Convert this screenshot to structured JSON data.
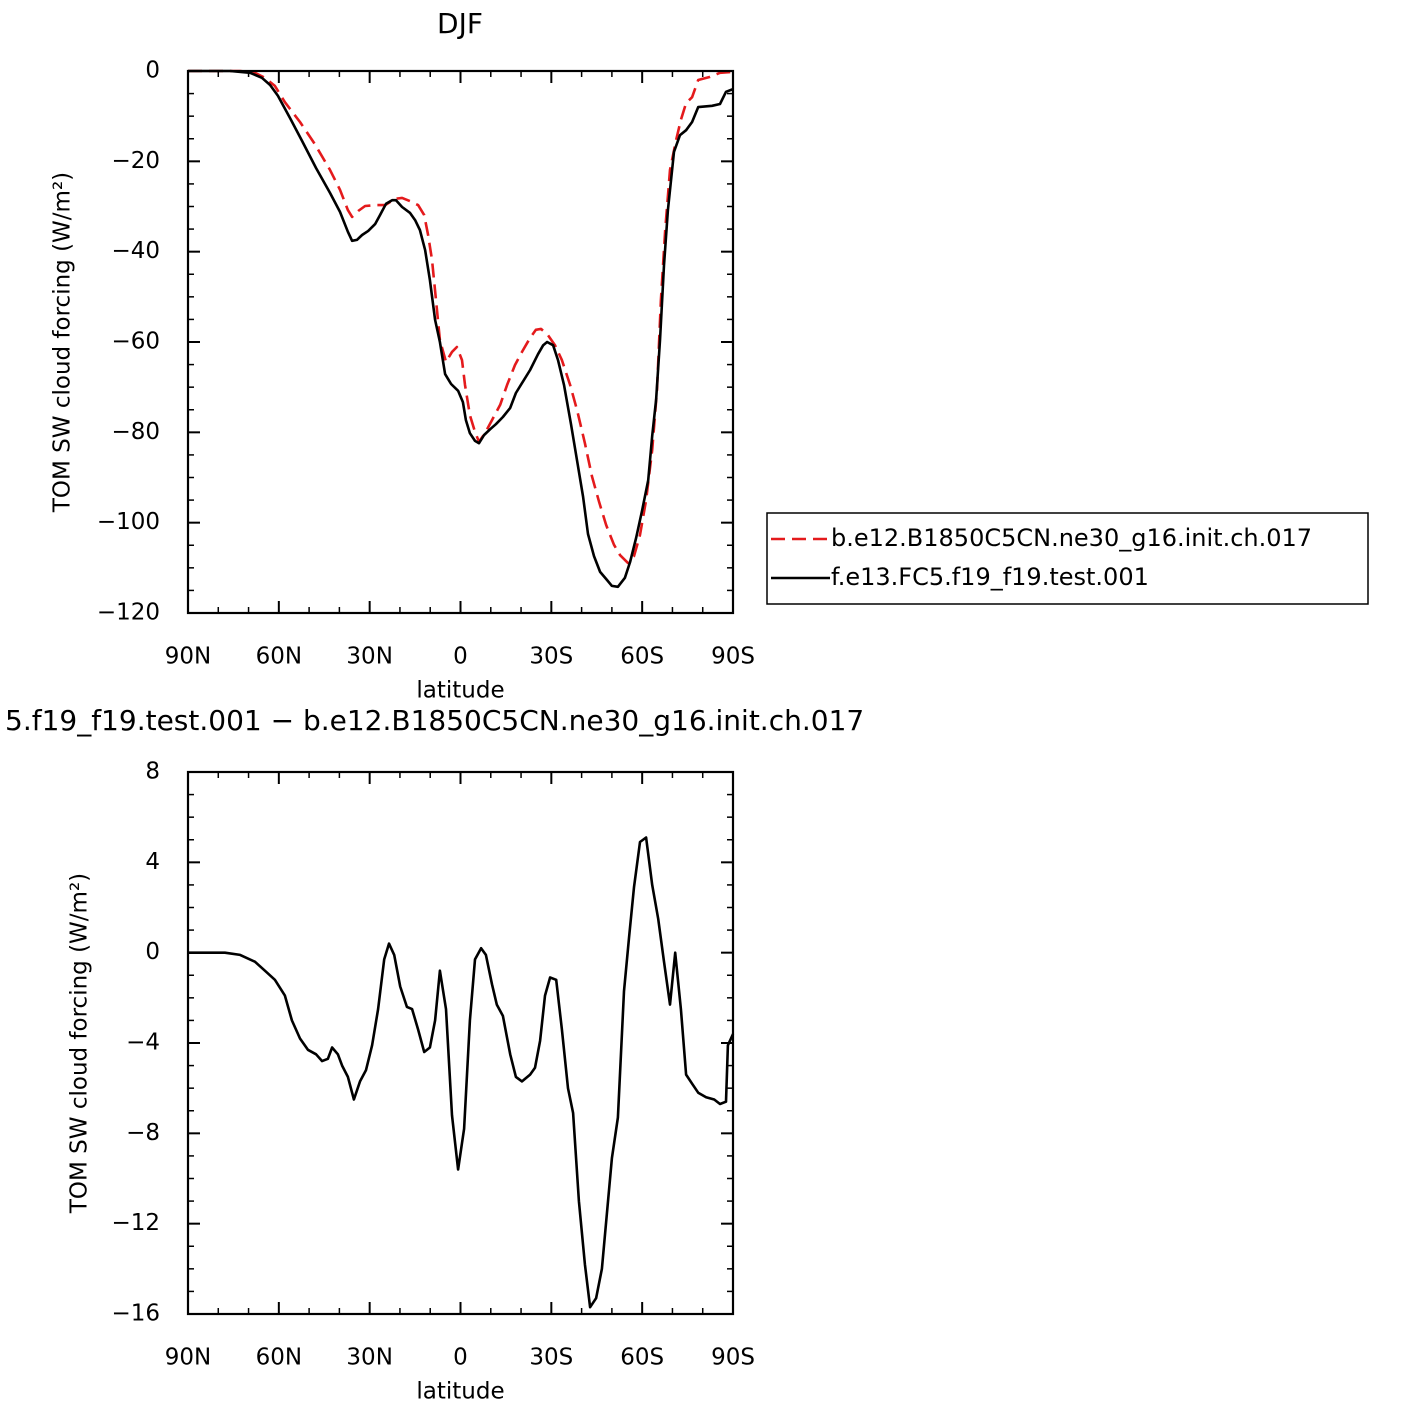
{
  "chart_data": [
    {
      "type": "line",
      "title": "DJF",
      "xlabel": "latitude",
      "ylabel": "TOM SW cloud forcing (W/m²)",
      "xlim": [
        90,
        -90
      ],
      "xticks": [
        {
          "value": 90,
          "label": "90N"
        },
        {
          "value": 60,
          "label": "60N"
        },
        {
          "value": 30,
          "label": "30N"
        },
        0,
        {
          "value": -30,
          "label": "30S"
        },
        {
          "value": -60,
          "label": "60S"
        },
        {
          "value": -90,
          "label": "90S"
        }
      ],
      "xminorticks": [
        80,
        70,
        50,
        40,
        20,
        10,
        -10,
        -20,
        -40,
        -50,
        -70,
        -80
      ],
      "ylim": [
        -120,
        0
      ],
      "yticks": [
        {
          "value": -120,
          "label": "−120"
        },
        {
          "value": -100,
          "label": "−100"
        },
        {
          "value": -80,
          "label": "−80"
        },
        {
          "value": -60,
          "label": "−60"
        },
        {
          "value": -40,
          "label": "−40"
        },
        {
          "value": -20,
          "label": "−20"
        },
        0
      ],
      "yminorticks": [
        -115,
        -110,
        -105,
        -95,
        -90,
        -85,
        -75,
        -70,
        -65,
        -55,
        -50,
        -45,
        -35,
        -30,
        -25,
        -15,
        -10,
        -5
      ],
      "legend": "right",
      "series": [
        {
          "name": "b.e12.B1850C5CN.ne30_g16.init.ch.017",
          "color": "#e41a1c",
          "line_style": "dashed",
          "x": [
            90,
            72.8,
            67.9,
            64.6,
            61.3,
            58.0,
            53.0,
            48.1,
            43.1,
            39.8,
            37.2,
            35.8,
            33.8,
            31.5,
            28.2,
            24.9,
            21.6,
            19.3,
            16.7,
            14.0,
            12.0,
            10.7,
            9.4,
            8.1,
            6.8,
            4.8,
            2.8,
            1.2,
            -0.5,
            -1.5,
            -3.1,
            -4.8,
            -6.1,
            -8.1,
            -10.4,
            -13.1,
            -15.4,
            -18.0,
            -20.3,
            -23.0,
            -24.9,
            -26.6,
            -28.9,
            -31.2,
            -33.5,
            -36.2,
            -38.5,
            -41.1,
            -43.4,
            -45.8,
            -48.1,
            -50.7,
            -52.7,
            -55.3,
            -57.3,
            -59.3,
            -61.3,
            -63.3,
            -64.9,
            -66.2,
            -67.6,
            -69.2,
            -71.2,
            -72.8,
            -74.5,
            -76.5,
            -78.5,
            -82.4,
            -85.7,
            -90
          ],
          "values": [
            0,
            0,
            -0.4,
            -1.5,
            -3.3,
            -6.9,
            -11.3,
            -16.2,
            -21.9,
            -26.3,
            -30.8,
            -32.3,
            -31.0,
            -29.9,
            -29.7,
            -29.7,
            -28.3,
            -28.1,
            -28.8,
            -29.7,
            -31.9,
            -36.3,
            -41.8,
            -50.7,
            -59.6,
            -64.4,
            -62.2,
            -61.1,
            -64.0,
            -69.5,
            -76.2,
            -79.9,
            -82.1,
            -80.2,
            -77.3,
            -73.9,
            -69.5,
            -65.1,
            -62.2,
            -59.1,
            -57.3,
            -57.1,
            -58.5,
            -60.7,
            -64.0,
            -69.5,
            -75.1,
            -82.4,
            -89.7,
            -95.5,
            -100.5,
            -104.9,
            -107.2,
            -108.9,
            -107.4,
            -102.7,
            -95.0,
            -83.9,
            -70.6,
            -50.7,
            -35.2,
            -21.9,
            -15.3,
            -10.8,
            -7.1,
            -5.8,
            -2.0,
            -1.3,
            -0.4,
            -0.2
          ]
        },
        {
          "name": "f.e13.FC5.f19_f19.test.001",
          "color": "#000000",
          "line_style": "solid",
          "x": [
            90,
            76.1,
            69.5,
            65.6,
            62.9,
            60.3,
            56.3,
            52.3,
            47.7,
            43.1,
            39.8,
            37.2,
            35.8,
            34.2,
            32.5,
            30.5,
            28.2,
            26.6,
            24.6,
            22.6,
            21.3,
            19.3,
            16.7,
            15.0,
            13.4,
            11.7,
            10.1,
            8.4,
            6.8,
            5.1,
            3.1,
            0.8,
            -0.8,
            -1.8,
            -3.1,
            -4.8,
            -6.1,
            -7.8,
            -9.8,
            -11.7,
            -14.0,
            -16.4,
            -18.3,
            -20.3,
            -23.0,
            -25.6,
            -27.3,
            -28.6,
            -30.6,
            -32.2,
            -34.2,
            -36.5,
            -38.5,
            -40.5,
            -42.1,
            -44.1,
            -46.1,
            -48.4,
            -50.0,
            -52.0,
            -54.3,
            -56.0,
            -58.0,
            -60.0,
            -62.0,
            -63.3,
            -64.6,
            -65.9,
            -67.2,
            -68.5,
            -70.5,
            -72.5,
            -74.5,
            -76.5,
            -78.5,
            -83.1,
            -85.7,
            -87.7,
            -90
          ],
          "values": [
            0,
            0,
            -0.4,
            -1.5,
            -3.1,
            -5.5,
            -10.4,
            -15.5,
            -21.5,
            -27.0,
            -31.2,
            -35.6,
            -37.6,
            -37.4,
            -36.3,
            -35.4,
            -33.9,
            -31.9,
            -29.4,
            -28.6,
            -28.6,
            -30.1,
            -31.4,
            -33.0,
            -35.2,
            -39.6,
            -46.3,
            -55.1,
            -60.0,
            -67.1,
            -69.3,
            -70.8,
            -73.3,
            -77.3,
            -80.2,
            -81.9,
            -82.4,
            -80.6,
            -79.3,
            -78.2,
            -76.6,
            -74.6,
            -71.3,
            -69.1,
            -66.2,
            -62.7,
            -60.7,
            -60.0,
            -60.7,
            -64.0,
            -69.5,
            -78.2,
            -86.3,
            -94.3,
            -102.5,
            -107.4,
            -110.9,
            -112.7,
            -114.0,
            -114.2,
            -112.2,
            -108.7,
            -103.4,
            -97.2,
            -90.6,
            -80.8,
            -72.8,
            -59.6,
            -43.0,
            -30.8,
            -17.9,
            -14.2,
            -13.1,
            -11.3,
            -8.0,
            -7.7,
            -7.3,
            -4.6,
            -4.0
          ]
        }
      ]
    },
    {
      "type": "line",
      "title": "5.f19_f19.test.001 − b.e12.B1850C5CN.ne30_g16.init.ch.017",
      "xlabel": "latitude",
      "ylabel": "TOM SW cloud forcing (W/m²)",
      "xlim": [
        90,
        -90
      ],
      "xticks": [
        {
          "value": 90,
          "label": "90N"
        },
        {
          "value": 60,
          "label": "60N"
        },
        {
          "value": 30,
          "label": "30N"
        },
        0,
        {
          "value": -30,
          "label": "30S"
        },
        {
          "value": -60,
          "label": "60S"
        },
        {
          "value": -90,
          "label": "90S"
        }
      ],
      "xminorticks": [
        80,
        70,
        50,
        40,
        20,
        10,
        -10,
        -20,
        -40,
        -50,
        -70,
        -80
      ],
      "ylim": [
        -16,
        8
      ],
      "yticks": [
        {
          "value": -16,
          "label": "−16"
        },
        {
          "value": -12,
          "label": "−12"
        },
        {
          "value": -8,
          "label": "−8"
        },
        {
          "value": -4,
          "label": "−4"
        },
        0,
        4,
        8
      ],
      "yminorticks": [
        7,
        6,
        5,
        3,
        2,
        1,
        -1,
        -2,
        -3,
        -5,
        -6,
        -7,
        -9,
        -10,
        -11,
        -13,
        -14,
        -15
      ],
      "color": "#000000",
      "x": [
        90,
        77.8,
        72.8,
        67.9,
        64.6,
        61.3,
        58.0,
        55.7,
        53.0,
        50.4,
        47.7,
        45.7,
        43.8,
        42.4,
        40.5,
        39.1,
        37.2,
        35.2,
        33.2,
        31.2,
        29.2,
        27.2,
        25.2,
        23.6,
        21.9,
        19.9,
        17.7,
        16.0,
        14.0,
        12.0,
        10.1,
        8.4,
        6.8,
        4.8,
        2.8,
        0.8,
        -1.2,
        -3.1,
        -4.8,
        -6.8,
        -8.4,
        -10.4,
        -12.0,
        -14.0,
        -16.4,
        -18.3,
        -20.3,
        -23.0,
        -24.6,
        -26.3,
        -27.9,
        -29.6,
        -31.6,
        -33.5,
        -35.5,
        -37.2,
        -39.1,
        -41.1,
        -42.8,
        -44.8,
        -46.7,
        -50.0,
        -52.0,
        -54.0,
        -55.7,
        -57.3,
        -59.3,
        -61.3,
        -63.3,
        -65.3,
        -67.2,
        -69.2,
        -70.9,
        -72.8,
        -74.5,
        -76.5,
        -78.5,
        -81.1,
        -83.8,
        -85.7,
        -87.7,
        -88.3,
        -90
      ],
      "values": [
        0,
        0,
        -0.1,
        -0.4,
        -0.8,
        -1.2,
        -1.9,
        -3.0,
        -3.8,
        -4.3,
        -4.5,
        -4.8,
        -4.7,
        -4.2,
        -4.5,
        -5.0,
        -5.5,
        -6.5,
        -5.7,
        -5.2,
        -4.1,
        -2.5,
        -0.3,
        0.4,
        -0.1,
        -1.5,
        -2.4,
        -2.5,
        -3.4,
        -4.4,
        -4.2,
        -3.0,
        -0.8,
        -2.5,
        -7.2,
        -9.6,
        -7.8,
        -3.0,
        -0.3,
        0.2,
        -0.1,
        -1.4,
        -2.3,
        -2.8,
        -4.5,
        -5.5,
        -5.7,
        -5.4,
        -5.1,
        -3.9,
        -1.9,
        -1.1,
        -1.2,
        -3.4,
        -6.0,
        -7.1,
        -11.0,
        -13.8,
        -15.7,
        -15.3,
        -14.0,
        -9.1,
        -7.3,
        -1.7,
        0.7,
        2.9,
        4.9,
        5.1,
        3.0,
        1.5,
        -0.4,
        -2.3,
        0,
        -2.5,
        -5.4,
        -5.8,
        -6.2,
        -6.4,
        -6.5,
        -6.7,
        -6.6,
        -4.1,
        -3.6
      ]
    }
  ]
}
